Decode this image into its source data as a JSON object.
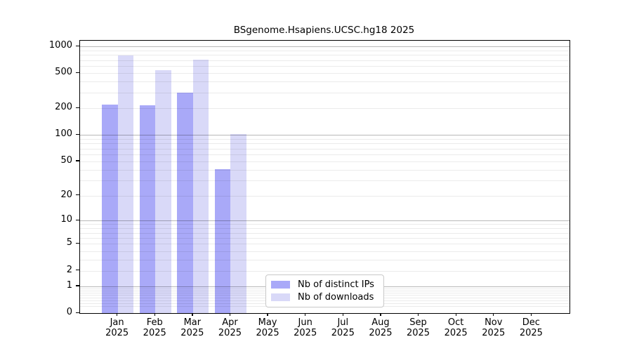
{
  "chart_data": {
    "type": "bar",
    "title": "BSgenome.Hsapiens.UCSC.hg18 2025",
    "categories": [
      "Jan",
      "Feb",
      "Mar",
      "Apr",
      "May",
      "Jun",
      "Jul",
      "Aug",
      "Sep",
      "Oct",
      "Nov",
      "Dec"
    ],
    "year_label": "2025",
    "series": [
      {
        "name": "Nb of distinct IPs",
        "color": "#a9a9f8",
        "values": [
          220,
          215,
          300,
          41,
          0,
          0,
          0,
          0,
          0,
          0,
          0,
          0
        ]
      },
      {
        "name": "Nb of downloads",
        "color": "#d9d9f8",
        "values": [
          790,
          540,
          710,
          103,
          0,
          0,
          0,
          0,
          0,
          0,
          0,
          0
        ]
      }
    ],
    "y_scale": "log1p",
    "y_ticks": [
      0,
      1,
      2,
      5,
      10,
      20,
      50,
      100,
      200,
      500,
      1000
    ],
    "ylim": [
      0,
      1160
    ],
    "grid": {
      "orientation": "horizontal",
      "major_at": [
        1,
        10,
        100,
        1000
      ],
      "minor_decade_subs": [
        2,
        3,
        4,
        5,
        6,
        7,
        8,
        9
      ],
      "minor_sub_one": [
        0.2,
        0.3,
        0.4,
        0.5,
        0.6,
        0.7,
        0.8,
        0.9
      ],
      "major_color": "#b8b8b8",
      "minor_color": "#ebebeb"
    },
    "legend_position": "bottom-center",
    "axis_color": "#000000",
    "xlabel": "",
    "ylabel": ""
  }
}
